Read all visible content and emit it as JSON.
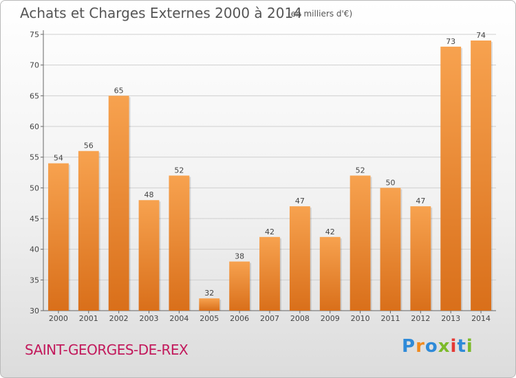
{
  "chart_data": {
    "type": "bar",
    "title": "Achats et Charges Externes 2000 à 2014",
    "subtitle": "(en milliers d'€)",
    "categories": [
      "2000",
      "2001",
      "2002",
      "2003",
      "2004",
      "2005",
      "2006",
      "2007",
      "2008",
      "2009",
      "2010",
      "2011",
      "2012",
      "2013",
      "2014"
    ],
    "values": [
      54,
      56,
      65,
      48,
      52,
      32,
      38,
      42,
      47,
      42,
      52,
      50,
      47,
      73,
      74
    ],
    "ylim": [
      30,
      75
    ],
    "yticks": [
      30,
      35,
      40,
      45,
      50,
      55,
      60,
      65,
      70,
      75
    ],
    "grid": true,
    "xlabel": "",
    "ylabel": ""
  },
  "footer": {
    "city": "SAINT-GEORGES-DE-REX",
    "logo_letters": [
      "P",
      "r",
      "o",
      "x",
      "i",
      "t",
      "i"
    ]
  },
  "colors": {
    "bar_light": "#f7a24f",
    "bar_dark": "#d96f1a",
    "city": "#c2185b",
    "logo": [
      "#2e8ad8",
      "#f08a1e",
      "#2e8ad8",
      "#7cba2a",
      "#e53935",
      "#2e8ad8",
      "#7cba2a"
    ]
  }
}
